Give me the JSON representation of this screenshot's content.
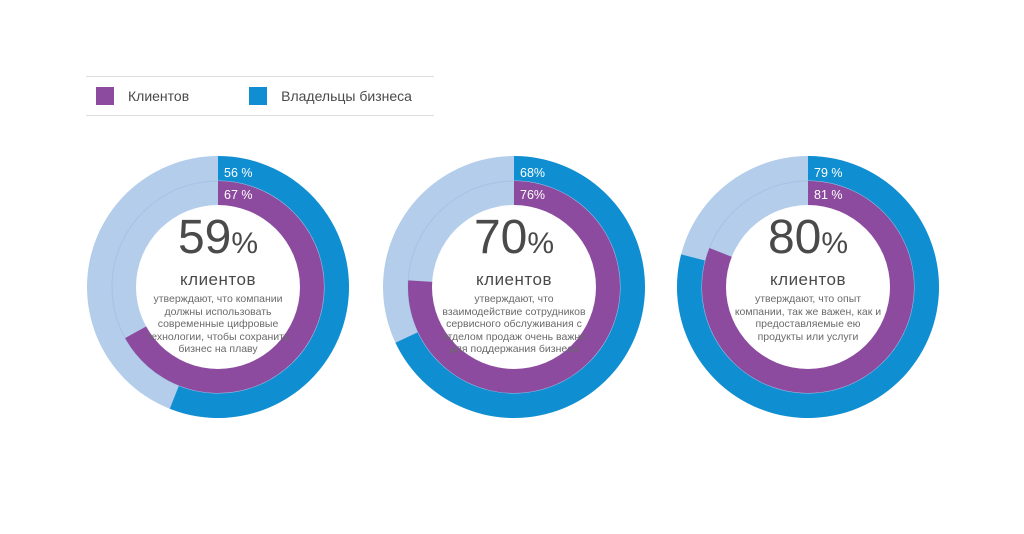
{
  "colors": {
    "clients": "#8c4b9e",
    "owners": "#0f8fd1",
    "remainder": "#b3cdeb",
    "center": "#ffffff",
    "text": "#4a4a4a"
  },
  "legend": [
    {
      "label": "Клиентов",
      "color": "#8c4b9e"
    },
    {
      "label": "Владельцы бизнеса",
      "color": "#0f8fd1"
    }
  ],
  "chart_data": [
    {
      "type": "pie",
      "series": [
        {
          "name": "Владельцы бизнеса",
          "value": 56,
          "label": "56 %"
        },
        {
          "name": "Клиентов",
          "value": 67,
          "label": "67 %"
        }
      ],
      "headline_value": "59",
      "headline_unit": "%",
      "subject": "клиентов",
      "description": "утверждают, что компании должны использовать современные цифровые технологии, чтобы сохранить бизнес на плаву"
    },
    {
      "type": "pie",
      "series": [
        {
          "name": "Владельцы бизнеса",
          "value": 68,
          "label": "68%"
        },
        {
          "name": "Клиентов",
          "value": 76,
          "label": "76%"
        }
      ],
      "headline_value": "70",
      "headline_unit": "%",
      "subject": "клиентов",
      "description": "утверждают, что взаимодействие сотрудников сервисного обслуживания с отделом продаж очень важно для поддержания бизнеса"
    },
    {
      "type": "pie",
      "series": [
        {
          "name": "Владельцы бизнеса",
          "value": 79,
          "label": "79 %"
        },
        {
          "name": "Клиентов",
          "value": 81,
          "label": "81 %"
        }
      ],
      "headline_value": "80",
      "headline_unit": "%",
      "subject": "клиентов",
      "description": "утверждают, что опыт компании, так же важен, как и предоставляемые ею продукты или услуги"
    }
  ]
}
